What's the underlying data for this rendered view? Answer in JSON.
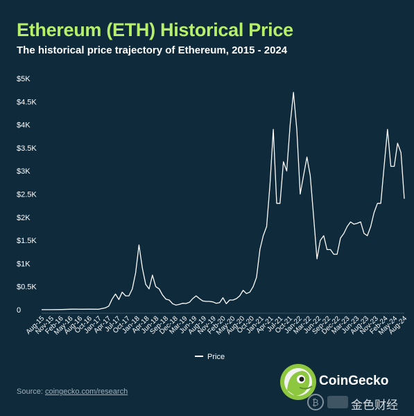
{
  "header": {
    "title": "Ethereum (ETH) Historical Price",
    "subtitle": "The historical price trajectory of Ethereum, 2015 - 2024"
  },
  "footer": {
    "source_label": "Source: ",
    "source_link": "coingecko.com/research",
    "brand": "CoinGecko",
    "watermark": "金色财经"
  },
  "colors": {
    "background": "#0f2a3a",
    "title": "#b6ef6a",
    "line": "#ffffff",
    "gridline": "#3a5566"
  },
  "chart_data": {
    "type": "line",
    "title": "Ethereum (ETH) Historical Price",
    "subtitle": "The historical price trajectory of Ethereum, 2015 - 2024",
    "xlabel": "",
    "ylabel": "",
    "ylim": [
      0,
      5000
    ],
    "yticks": [
      0,
      500,
      1000,
      1500,
      2000,
      2500,
      3000,
      3500,
      4000,
      4500,
      5000
    ],
    "ytick_labels": [
      "0",
      "$0.5K",
      "$1K",
      "$1.5K",
      "$2K",
      "$2.5K",
      "$3K",
      "$3.5K",
      "$4K",
      "$4.5K",
      "$5K"
    ],
    "xtick_labels": [
      "Aug-15",
      "Nov-15",
      "Feb-16",
      "May-16",
      "Aug-16",
      "Oct-16",
      "Jan-17",
      "Apr-17",
      "Jul-17",
      "Oct-17",
      "Jan-18",
      "Apr-18",
      "Jun-18",
      "Sep-18",
      "Dec-18",
      "Mar-19",
      "Jun-19",
      "Aug-19",
      "Nov-19",
      "Feb-20",
      "May-20",
      "Aug-20",
      "Oct-20",
      "Jan-21",
      "Apr-21",
      "Jul-21",
      "Oct-21",
      "Jan-22",
      "Mar-22",
      "Jun-22",
      "Sep-22",
      "Dec-22",
      "Mar-23",
      "Jun-23",
      "Aug-23",
      "Nov-23",
      "Feb-24",
      "May-24",
      "Aug-24"
    ],
    "grid": false,
    "legend": "bottom-center",
    "series": [
      {
        "name": "Price",
        "x": [
          "2015-08",
          "2015-11",
          "2016-02",
          "2016-05",
          "2016-06",
          "2016-08",
          "2016-10",
          "2017-01",
          "2017-03",
          "2017-04",
          "2017-05",
          "2017-06",
          "2017-07",
          "2017-08",
          "2017-09",
          "2017-10",
          "2017-11",
          "2017-12",
          "2018-01",
          "2018-02",
          "2018-03",
          "2018-04",
          "2018-05",
          "2018-06",
          "2018-07",
          "2018-08",
          "2018-09",
          "2018-10",
          "2018-11",
          "2018-12",
          "2019-01",
          "2019-02",
          "2019-03",
          "2019-04",
          "2019-05",
          "2019-06",
          "2019-07",
          "2019-08",
          "2019-09",
          "2019-10",
          "2019-11",
          "2019-12",
          "2020-01",
          "2020-02",
          "2020-03",
          "2020-04",
          "2020-05",
          "2020-06",
          "2020-07",
          "2020-08",
          "2020-09",
          "2020-10",
          "2020-11",
          "2020-12",
          "2021-01",
          "2021-02",
          "2021-03",
          "2021-04",
          "2021-05",
          "2021-06",
          "2021-07",
          "2021-08",
          "2021-09",
          "2021-10",
          "2021-11",
          "2021-12",
          "2022-01",
          "2022-02",
          "2022-03",
          "2022-04",
          "2022-05",
          "2022-06",
          "2022-07",
          "2022-08",
          "2022-09",
          "2022-10",
          "2022-11",
          "2022-12",
          "2023-01",
          "2023-02",
          "2023-03",
          "2023-04",
          "2023-05",
          "2023-06",
          "2023-07",
          "2023-08",
          "2023-09",
          "2023-10",
          "2023-11",
          "2023-12",
          "2024-01",
          "2024-02",
          "2024-03",
          "2024-04",
          "2024-05",
          "2024-06",
          "2024-07",
          "2024-08"
        ],
        "values": [
          2,
          1,
          5,
          12,
          14,
          11,
          12,
          10,
          40,
          80,
          230,
          340,
          220,
          380,
          300,
          300,
          450,
          800,
          1400,
          900,
          550,
          450,
          750,
          500,
          450,
          320,
          230,
          210,
          130,
          100,
          115,
          140,
          135,
          160,
          240,
          300,
          240,
          190,
          180,
          180,
          170,
          140,
          155,
          260,
          130,
          210,
          210,
          240,
          300,
          420,
          350,
          380,
          500,
          700,
          1300,
          1600,
          1800,
          2700,
          3900,
          2300,
          2300,
          3200,
          3000,
          4000,
          4700,
          3900,
          2500,
          2900,
          3300,
          2900,
          2000,
          1100,
          1500,
          1600,
          1300,
          1300,
          1200,
          1200,
          1550,
          1650,
          1800,
          1900,
          1850,
          1870,
          1900,
          1650,
          1600,
          1800,
          2100,
          2300,
          2300,
          3100,
          3900,
          3100,
          3100,
          3600,
          3400,
          2400
        ]
      }
    ]
  }
}
